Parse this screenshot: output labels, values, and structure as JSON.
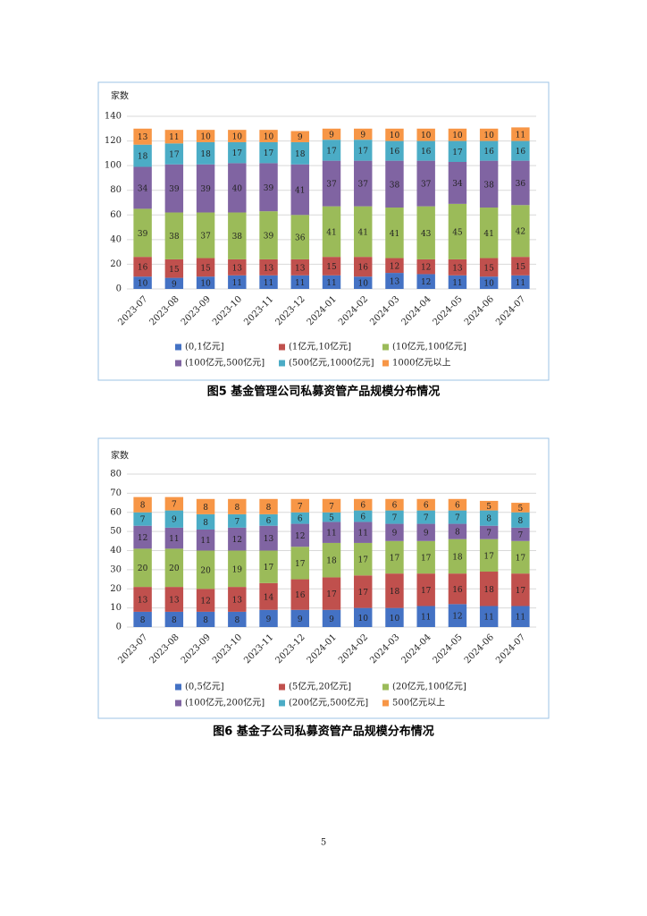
{
  "chart_data": [
    {
      "type": "stacked_bar",
      "ylabel": "家数",
      "caption": "图5   基金管理公司私募资管产品规模分布情况",
      "categories": [
        "2023-07",
        "2023-08",
        "2023-09",
        "2023-10",
        "2023-11",
        "2023-12",
        "2024-01",
        "2024-02",
        "2024-03",
        "2024-04",
        "2024-05",
        "2024-06",
        "2024-07"
      ],
      "ylim": [
        0,
        140
      ],
      "yticks": [
        0,
        20,
        40,
        60,
        80,
        100,
        120,
        140
      ],
      "grid": true,
      "series": [
        {
          "name": "(0,1亿元]",
          "color": "#4472c4",
          "values": [
            10,
            9,
            10,
            11,
            11,
            11,
            11,
            10,
            13,
            12,
            11,
            10,
            11
          ]
        },
        {
          "name": "(1亿元,10亿元]",
          "color": "#c0504d",
          "values": [
            16,
            15,
            15,
            13,
            13,
            13,
            15,
            16,
            12,
            12,
            13,
            15,
            15
          ]
        },
        {
          "name": "(10亿元,100亿元]",
          "color": "#9bbb59",
          "values": [
            39,
            38,
            37,
            38,
            39,
            36,
            41,
            41,
            41,
            43,
            45,
            41,
            42
          ]
        },
        {
          "name": "(100亿元,500亿元]",
          "color": "#8064a2",
          "values": [
            34,
            39,
            39,
            40,
            39,
            41,
            37,
            37,
            38,
            37,
            34,
            38,
            36
          ]
        },
        {
          "name": "(500亿元,1000亿元]",
          "color": "#4bacc6",
          "values": [
            18,
            17,
            18,
            17,
            17,
            18,
            17,
            17,
            16,
            16,
            17,
            16,
            16
          ]
        },
        {
          "name": "1000亿元以上",
          "color": "#f79646",
          "values": [
            13,
            11,
            10,
            10,
            10,
            9,
            9,
            9,
            10,
            10,
            10,
            10,
            11
          ]
        }
      ]
    },
    {
      "type": "stacked_bar",
      "ylabel": "家数",
      "caption": "图6   基金子公司私募资管产品规模分布情况",
      "categories": [
        "2023-07",
        "2023-08",
        "2023-09",
        "2023-10",
        "2023-11",
        "2023-12",
        "2024-01",
        "2024-02",
        "2024-03",
        "2024-04",
        "2024-05",
        "2024-06",
        "2024-07"
      ],
      "ylim": [
        0,
        80
      ],
      "yticks": [
        0,
        10,
        20,
        30,
        40,
        50,
        60,
        70,
        80
      ],
      "grid": true,
      "series": [
        {
          "name": "(0,5亿元]",
          "color": "#4472c4",
          "values": [
            8,
            8,
            8,
            8,
            9,
            9,
            9,
            10,
            10,
            11,
            12,
            11,
            11
          ]
        },
        {
          "name": "(5亿元,20亿元]",
          "color": "#c0504d",
          "values": [
            13,
            13,
            12,
            13,
            14,
            16,
            17,
            17,
            18,
            17,
            16,
            18,
            17
          ]
        },
        {
          "name": "(20亿元,100亿元]",
          "color": "#9bbb59",
          "values": [
            20,
            20,
            20,
            19,
            17,
            17,
            18,
            17,
            17,
            17,
            18,
            17,
            17
          ]
        },
        {
          "name": "(100亿元,200亿元]",
          "color": "#8064a2",
          "values": [
            12,
            11,
            11,
            12,
            13,
            12,
            11,
            11,
            9,
            9,
            8,
            7,
            7
          ]
        },
        {
          "name": "(200亿元,500亿元]",
          "color": "#4bacc6",
          "values": [
            7,
            9,
            8,
            7,
            6,
            6,
            5,
            6,
            7,
            7,
            7,
            8,
            8
          ]
        },
        {
          "name": "500亿元以上",
          "color": "#f79646",
          "values": [
            8,
            7,
            8,
            8,
            8,
            7,
            7,
            6,
            6,
            6,
            6,
            5,
            5
          ]
        }
      ]
    }
  ],
  "page_number": "5"
}
